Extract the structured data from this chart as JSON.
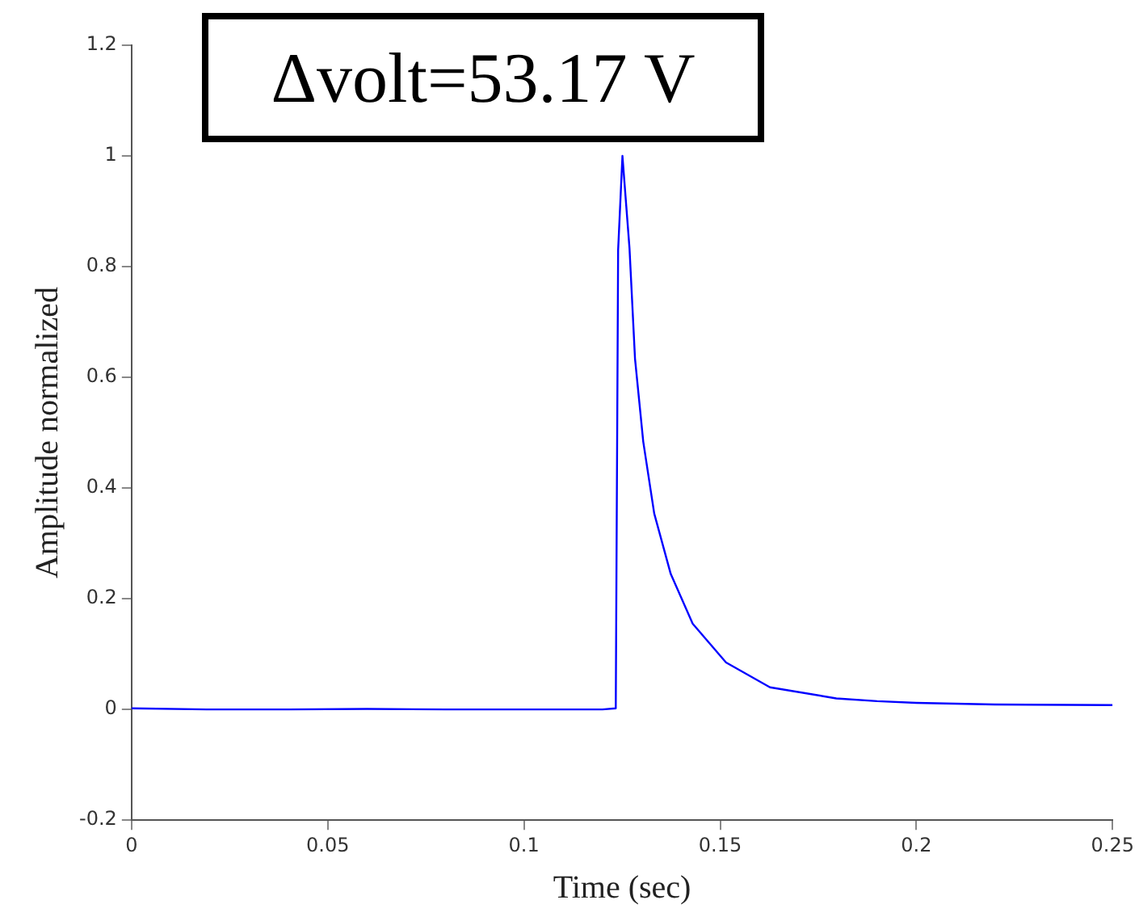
{
  "chart_data": {
    "type": "line",
    "xlabel": "Time (sec)",
    "ylabel": "Amplitude normalized",
    "annotations": [
      "Δvolt=53.17 V"
    ],
    "x": [
      0,
      0.02,
      0.04,
      0.06,
      0.08,
      0.1,
      0.12,
      0.1234,
      0.124,
      0.1251,
      0.1269,
      0.1283,
      0.1304,
      0.1332,
      0.1374,
      0.143,
      0.1515,
      0.1627,
      0.1796,
      0.19,
      0.2,
      0.22,
      0.25
    ],
    "series": [
      {
        "color": "#0000ff",
        "values": [
          0.002,
          0,
          0,
          0.001,
          0,
          0,
          0,
          0.002,
          0.83,
          1.0,
          0.833,
          0.634,
          0.484,
          0.354,
          0.245,
          0.155,
          0.085,
          0.04,
          0.02,
          0.015,
          0.012,
          0.009,
          0.008
        ]
      }
    ],
    "xlim": [
      0,
      0.25
    ],
    "xticks": [
      0,
      0.05,
      0.1,
      0.15,
      0.2,
      0.25
    ],
    "ylim": [
      -0.2,
      1.2
    ],
    "yticks": [
      -0.2,
      0,
      0.2,
      0.4,
      0.6,
      0.8,
      1,
      1.2
    ],
    "grid": false,
    "legend": false,
    "marker": "none",
    "line_style": "solid"
  }
}
